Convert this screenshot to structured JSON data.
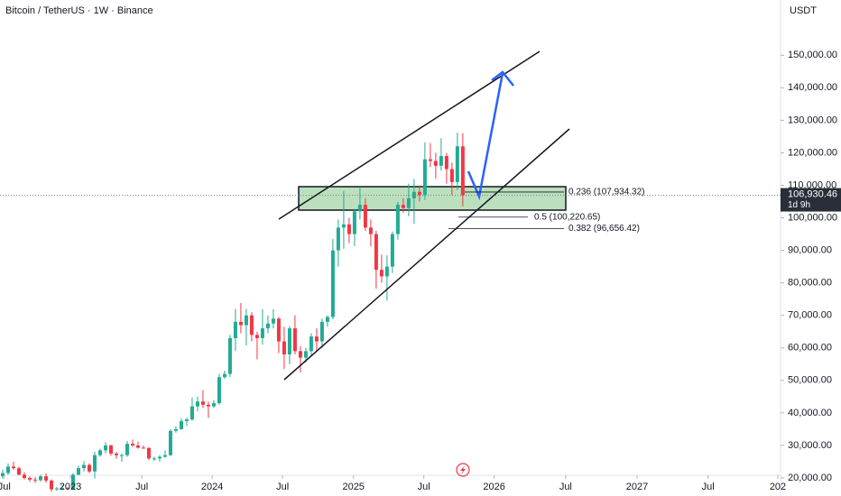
{
  "chart_data": {
    "type": "candlestick",
    "title": "Bitcoin / TetherUS · 1W · Binance",
    "currency": "USDT",
    "up_color": "#22ab94",
    "down_color": "#f23645",
    "candles": [
      [
        20500,
        22500,
        19800,
        21500
      ],
      [
        21500,
        24500,
        21000,
        23500
      ],
      [
        23500,
        25000,
        22500,
        23000
      ],
      [
        23000,
        23500,
        20800,
        21000
      ],
      [
        21000,
        21800,
        19500,
        20000
      ],
      [
        20000,
        20500,
        18800,
        19500
      ],
      [
        19500,
        20300,
        18500,
        19300
      ],
      [
        19300,
        21000,
        18900,
        20500
      ],
      [
        20500,
        21400,
        18500,
        19200
      ],
      [
        19200,
        19600,
        15800,
        16500
      ],
      [
        16500,
        17300,
        16000,
        16800
      ],
      [
        16800,
        18000,
        16500,
        16900
      ],
      [
        16900,
        17200,
        16400,
        16600
      ],
      [
        16600,
        21500,
        16500,
        21000
      ],
      [
        21000,
        23800,
        20800,
        23000
      ],
      [
        23000,
        25200,
        22000,
        24000
      ],
      [
        24000,
        24500,
        21500,
        22000
      ],
      [
        22000,
        28000,
        19800,
        27000
      ],
      [
        27000,
        29000,
        26500,
        28500
      ],
      [
        28500,
        31000,
        27500,
        30000
      ],
      [
        30000,
        30200,
        26800,
        27500
      ],
      [
        27500,
        28000,
        25900,
        27000
      ],
      [
        27000,
        27500,
        25000,
        27000
      ],
      [
        27000,
        31400,
        26500,
        30500
      ],
      [
        30500,
        31800,
        29500,
        30000
      ],
      [
        30000,
        31200,
        29000,
        29300
      ],
      [
        29300,
        30000,
        29000,
        29200
      ],
      [
        29200,
        29500,
        25500,
        26000
      ],
      [
        26000,
        26500,
        25200,
        26000
      ],
      [
        26000,
        27000,
        25000,
        26500
      ],
      [
        26500,
        28500,
        26300,
        27000
      ],
      [
        27000,
        35000,
        26800,
        34500
      ],
      [
        34500,
        35900,
        33900,
        35000
      ],
      [
        35000,
        38400,
        34800,
        37500
      ],
      [
        37500,
        38500,
        36000,
        38000
      ],
      [
        38000,
        44700,
        37600,
        42000
      ],
      [
        42000,
        45000,
        40500,
        43500
      ],
      [
        43500,
        47000,
        41500,
        42500
      ],
      [
        42500,
        43500,
        38500,
        42000
      ],
      [
        42000,
        44000,
        41500,
        43000
      ],
      [
        43000,
        52000,
        42500,
        51000
      ],
      [
        51000,
        53000,
        50500,
        52000
      ],
      [
        52000,
        64000,
        51000,
        63000
      ],
      [
        63000,
        72000,
        59000,
        68000
      ],
      [
        68000,
        73800,
        64500,
        67000
      ],
      [
        67000,
        72000,
        60800,
        70000
      ],
      [
        70000,
        71000,
        62000,
        64000
      ],
      [
        64000,
        65000,
        56500,
        63000
      ],
      [
        63000,
        71900,
        61000,
        66000
      ],
      [
        66000,
        70000,
        64500,
        67500
      ],
      [
        67500,
        71900,
        66000,
        69000
      ],
      [
        69000,
        69500,
        58400,
        62000
      ],
      [
        62000,
        66500,
        53500,
        58000
      ],
      [
        58000,
        66700,
        55000,
        66000
      ],
      [
        66000,
        70000,
        58000,
        59000
      ],
      [
        59000,
        60500,
        52500,
        57000
      ],
      [
        57000,
        60000,
        55500,
        59000
      ],
      [
        59000,
        64500,
        57500,
        63500
      ],
      [
        63500,
        66000,
        59000,
        62000
      ],
      [
        62000,
        69000,
        60000,
        68000
      ],
      [
        68000,
        70000,
        66500,
        69500
      ],
      [
        69500,
        93500,
        68800,
        90000
      ],
      [
        90000,
        99500,
        85000,
        97000
      ],
      [
        97000,
        108300,
        90500,
        98000
      ],
      [
        98000,
        100000,
        92200,
        95000
      ],
      [
        95000,
        102700,
        91300,
        102000
      ],
      [
        102000,
        109500,
        99500,
        104000
      ],
      [
        104000,
        106000,
        96000,
        97000
      ],
      [
        97000,
        99500,
        91200,
        95000
      ],
      [
        95000,
        96000,
        78200,
        84000
      ],
      [
        84000,
        88700,
        80000,
        82000
      ],
      [
        82000,
        88500,
        74500,
        85000
      ],
      [
        85000,
        95800,
        83000,
        95000
      ],
      [
        95000,
        104900,
        93300,
        104000
      ],
      [
        104000,
        106000,
        101500,
        103000
      ],
      [
        103000,
        110500,
        100500,
        106000
      ],
      [
        106000,
        111900,
        98200,
        108000
      ],
      [
        108000,
        110000,
        105000,
        107000
      ],
      [
        107000,
        123200,
        105500,
        118000
      ],
      [
        118000,
        123000,
        115600,
        117500
      ],
      [
        117500,
        120000,
        112000,
        116000
      ],
      [
        116000,
        124500,
        114500,
        119000
      ],
      [
        119000,
        120000,
        110500,
        115000
      ],
      [
        115000,
        117000,
        107000,
        111000
      ],
      [
        111000,
        126200,
        108500,
        122000
      ],
      [
        122000,
        126000,
        103500,
        106930
      ]
    ],
    "xlim": [
      0,
      144.2
    ],
    "xticks": [
      {
        "value": 0.8,
        "label": "Jul"
      },
      {
        "value": 13,
        "label": "2023"
      },
      {
        "value": 26.2,
        "label": "Jul"
      },
      {
        "value": 39.2,
        "label": "2024"
      },
      {
        "value": 52.2,
        "label": "Jul"
      },
      {
        "value": 65.3,
        "label": "2025"
      },
      {
        "value": 78.3,
        "label": "Jul"
      },
      {
        "value": 91.3,
        "label": "2026"
      },
      {
        "value": 104.5,
        "label": "Jul"
      },
      {
        "value": 117.7,
        "label": "2027"
      },
      {
        "value": 130.8,
        "label": "Jul"
      },
      {
        "value": 143.7,
        "label": "202"
      }
    ],
    "ylim": [
      15000,
      167000
    ],
    "yticks": [
      {
        "value": 20000,
        "label": "20,000.00"
      },
      {
        "value": 30000,
        "label": "30,000.00"
      },
      {
        "value": 40000,
        "label": "40,000.00"
      },
      {
        "value": 50000,
        "label": "50,000.00"
      },
      {
        "value": 60000,
        "label": "60,000.00"
      },
      {
        "value": 70000,
        "label": "70,000.00"
      },
      {
        "value": 80000,
        "label": "80,000.00"
      },
      {
        "value": 90000,
        "label": "90,000.00"
      },
      {
        "value": 100000,
        "label": "100,000.00"
      },
      {
        "value": 110000,
        "label": "110,000.00"
      },
      {
        "value": 120000,
        "label": "120,000.00"
      },
      {
        "value": 130000,
        "label": "130,000.00"
      },
      {
        "value": 140000,
        "label": "140,000.00"
      },
      {
        "value": 150000,
        "label": "150,000.00"
      }
    ],
    "current_price": {
      "value": 106930.46,
      "label": "106,930.46",
      "countdown": "1d 9h"
    },
    "fib_levels": [
      {
        "value": 107934.32,
        "label": "0.236 (107,934.32)"
      },
      {
        "value": 100220.65,
        "label": "0.5 (100,220.65)"
      },
      {
        "value": 96656.42,
        "label": "0.382 (96,656.42)"
      }
    ]
  }
}
